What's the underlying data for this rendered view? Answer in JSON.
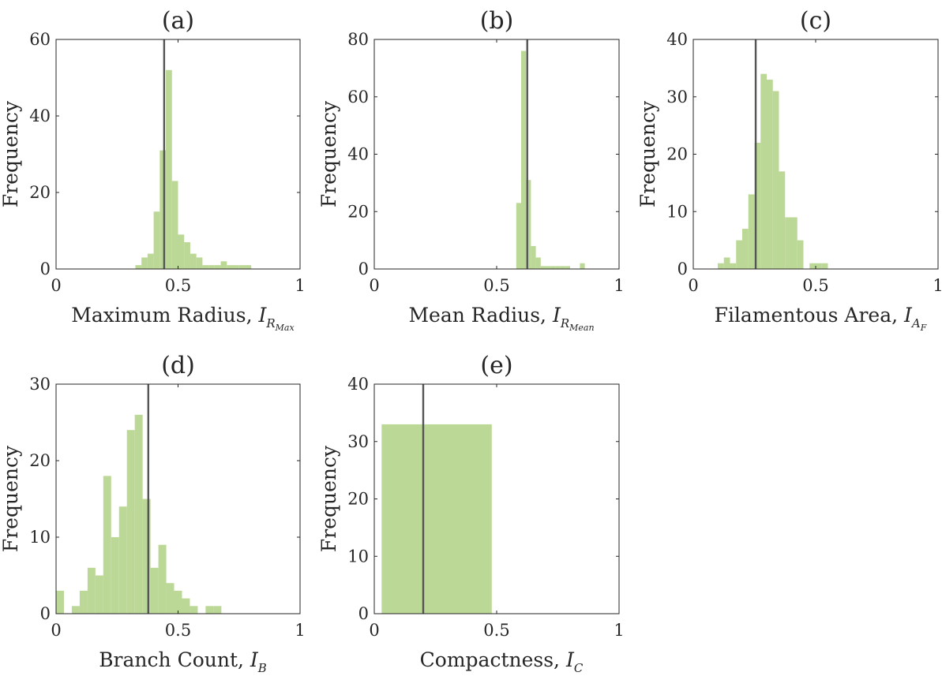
{
  "colors": {
    "bar": "#bcd896",
    "reference_line": "#555555",
    "axis": "#262626"
  },
  "chart_data": [
    {
      "type": "bar",
      "title": "(a)",
      "xlabel_text": "Maximum Radius, ",
      "xlabel_symbol": "I",
      "xlabel_sub": "R",
      "xlabel_subsub": "Max",
      "ylabel": "Frequency",
      "xlim": [
        0,
        1
      ],
      "ylim": [
        0,
        60
      ],
      "xticks": [
        0,
        0.5,
        1
      ],
      "xtick_labels": [
        "0",
        "0.5",
        "1"
      ],
      "yticks": [
        0,
        20,
        40,
        60
      ],
      "ytick_labels": [
        "0",
        "20",
        "40",
        "60"
      ],
      "bin_width": 0.025,
      "bin_starts": [
        0.325,
        0.35,
        0.375,
        0.4,
        0.425,
        0.45,
        0.475,
        0.5,
        0.525,
        0.55,
        0.575,
        0.6,
        0.625,
        0.65,
        0.675,
        0.7,
        0.725,
        0.75,
        0.775
      ],
      "values": [
        1,
        3,
        4,
        15,
        31,
        52,
        23,
        9,
        7,
        4,
        3,
        1,
        1,
        1,
        2,
        1,
        1,
        1,
        1
      ],
      "reference_x": 0.443
    },
    {
      "type": "bar",
      "title": "(b)",
      "xlabel_text": "Mean Radius, ",
      "xlabel_symbol": "I",
      "xlabel_sub": "R",
      "xlabel_subsub": "Mean",
      "ylabel": "Frequency",
      "xlim": [
        0,
        1
      ],
      "ylim": [
        0,
        80
      ],
      "xticks": [
        0,
        0.5,
        1
      ],
      "xtick_labels": [
        "0",
        "0.5",
        "1"
      ],
      "yticks": [
        0,
        20,
        40,
        60,
        80
      ],
      "ytick_labels": [
        "0",
        "20",
        "40",
        "60",
        "80"
      ],
      "bin_width": 0.02,
      "bin_starts": [
        0.58,
        0.6,
        0.62,
        0.64,
        0.66,
        0.68,
        0.7,
        0.72,
        0.74,
        0.76,
        0.78,
        0.8,
        0.82,
        0.84
      ],
      "values": [
        23,
        76,
        31,
        8,
        4,
        1,
        1,
        1,
        1,
        1,
        1,
        0,
        0,
        2
      ],
      "reference_x": 0.625
    },
    {
      "type": "bar",
      "title": "(c)",
      "xlabel_text": "Filamentous Area, ",
      "xlabel_symbol": "I",
      "xlabel_sub": "A",
      "xlabel_subsub": "F",
      "ylabel": "Frequency",
      "xlim": [
        0,
        1
      ],
      "ylim": [
        0,
        40
      ],
      "xticks": [
        0,
        0.5,
        1
      ],
      "xtick_labels": [
        "0",
        "0.5",
        "1"
      ],
      "yticks": [
        0,
        10,
        20,
        30,
        40
      ],
      "ytick_labels": [
        "0",
        "10",
        "20",
        "30",
        "40"
      ],
      "bin_width": 0.025,
      "bin_starts": [
        0.1,
        0.125,
        0.15,
        0.175,
        0.2,
        0.225,
        0.25,
        0.275,
        0.3,
        0.325,
        0.35,
        0.375,
        0.4,
        0.425,
        0.45,
        0.475,
        0.5,
        0.525,
        0.55
      ],
      "values": [
        1,
        2,
        1,
        5,
        7,
        13,
        22,
        34,
        33,
        31,
        17,
        9,
        9,
        5,
        0,
        1,
        1,
        1,
        0
      ],
      "reference_x": 0.255
    },
    {
      "type": "bar",
      "title": "(d)",
      "xlabel_text": "Branch Count, ",
      "xlabel_symbol": "I",
      "xlabel_sub": "B",
      "xlabel_subsub": "",
      "ylabel": "Frequency",
      "xlim": [
        0,
        1
      ],
      "ylim": [
        0,
        30
      ],
      "xticks": [
        0,
        0.5,
        1
      ],
      "xtick_labels": [
        "0",
        "0.5",
        "1"
      ],
      "yticks": [
        0,
        10,
        20,
        30
      ],
      "ytick_labels": [
        "0",
        "10",
        "20",
        "30"
      ],
      "bin_width": 0.0323,
      "bin_starts": [
        0,
        0.0323,
        0.0645,
        0.0968,
        0.129,
        0.1613,
        0.1935,
        0.2258,
        0.2581,
        0.2903,
        0.3226,
        0.3548,
        0.3871,
        0.4194,
        0.4516,
        0.4839,
        0.5161,
        0.5484,
        0.5806,
        0.6129,
        0.6452,
        0.6774
      ],
      "values": [
        3,
        0,
        1,
        3,
        6,
        5,
        18,
        10,
        14,
        24,
        26,
        15,
        6,
        9,
        4,
        3,
        2,
        1,
        0,
        1,
        1,
        0
      ],
      "reference_x": 0.378
    },
    {
      "type": "bar",
      "title": "(e)",
      "xlabel_text": "Compactness, ",
      "xlabel_symbol": "I",
      "xlabel_sub": "C",
      "xlabel_subsub": "",
      "ylabel": "Frequency",
      "xlim": [
        0,
        1
      ],
      "ylim": [
        0,
        40
      ],
      "xticks": [
        0,
        0.5,
        1
      ],
      "xtick_labels": [
        "0",
        "0.5",
        "1"
      ],
      "yticks": [
        0,
        10,
        20,
        30,
        40
      ],
      "ytick_labels": [
        "0",
        "10",
        "20",
        "30",
        "40"
      ],
      "bin_width": 0.45,
      "bin_starts": [
        0.03
      ],
      "values": [
        33
      ],
      "reference_x": 0.2
    }
  ]
}
